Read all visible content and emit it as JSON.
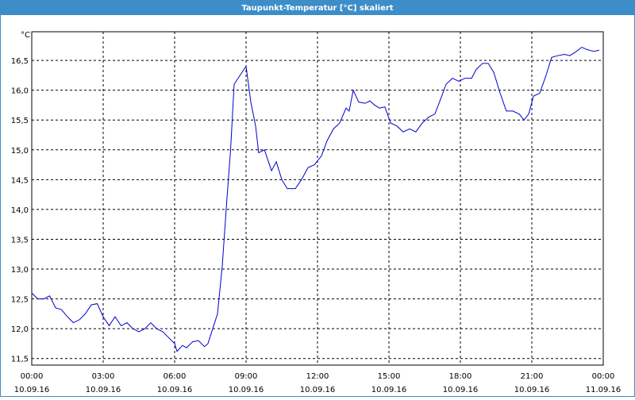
{
  "chart_data": {
    "type": "line",
    "title": "Taupunkt-Temperatur [°C] skaliert",
    "y_unit": "°C",
    "x": [
      0,
      0.25,
      0.5,
      0.75,
      1.0,
      1.25,
      1.5,
      1.75,
      2.0,
      2.25,
      2.5,
      2.75,
      3.0,
      3.25,
      3.5,
      3.75,
      4.0,
      4.25,
      4.5,
      4.75,
      5.0,
      5.25,
      5.5,
      5.75,
      6.0,
      6.1,
      6.33,
      6.5,
      6.75,
      7.0,
      7.25,
      7.4,
      7.6,
      7.8,
      8.0,
      8.2,
      8.35,
      8.5,
      8.83,
      9.0,
      9.2,
      9.4,
      9.53,
      9.77,
      10.07,
      10.27,
      10.5,
      10.73,
      11.07,
      11.33,
      11.6,
      11.87,
      12.17,
      12.4,
      12.67,
      12.93,
      13.2,
      13.33,
      13.5,
      13.73,
      14.0,
      14.2,
      14.4,
      14.6,
      14.83,
      15.07,
      15.33,
      15.6,
      15.87,
      16.13,
      16.4,
      16.67,
      16.93,
      17.17,
      17.4,
      17.67,
      17.93,
      18.2,
      18.47,
      18.67,
      18.93,
      19.17,
      19.4,
      19.67,
      19.93,
      20.2,
      20.47,
      20.67,
      20.87,
      21.07,
      21.33,
      21.6,
      21.83,
      22.1,
      22.37,
      22.6,
      22.87,
      23.1,
      23.33,
      23.6,
      23.83
    ],
    "series": [
      {
        "name": "Taupunkt",
        "color": "#0000cc",
        "values": [
          12.6,
          12.5,
          12.5,
          12.55,
          12.35,
          12.32,
          12.2,
          12.1,
          12.15,
          12.25,
          12.4,
          12.42,
          12.2,
          12.05,
          12.2,
          12.05,
          12.1,
          12.0,
          11.95,
          12.0,
          12.1,
          12.0,
          11.95,
          11.85,
          11.75,
          11.62,
          11.72,
          11.68,
          11.78,
          11.8,
          11.7,
          11.75,
          12.0,
          12.25,
          13.05,
          14.2,
          15.0,
          16.1,
          16.3,
          16.4,
          15.8,
          15.4,
          14.95,
          15.0,
          14.65,
          14.8,
          14.5,
          14.35,
          14.35,
          14.5,
          14.7,
          14.75,
          14.9,
          15.15,
          15.35,
          15.45,
          15.7,
          15.65,
          16.0,
          15.8,
          15.78,
          15.82,
          15.75,
          15.7,
          15.72,
          15.45,
          15.4,
          15.3,
          15.35,
          15.3,
          15.45,
          15.55,
          15.6,
          15.85,
          16.1,
          16.2,
          16.15,
          16.2,
          16.2,
          16.35,
          16.45,
          16.45,
          16.3,
          15.95,
          15.65,
          15.65,
          15.6,
          15.5,
          15.6,
          15.9,
          15.95,
          16.25,
          16.55,
          16.58,
          16.6,
          16.58,
          16.65,
          16.72,
          16.68,
          16.65,
          16.67
        ]
      }
    ],
    "xlim": [
      0,
      24
    ],
    "xticks": [
      {
        "value": 0,
        "label": "00:00",
        "date": "10.09.16"
      },
      {
        "value": 3,
        "label": "03:00",
        "date": "10.09.16"
      },
      {
        "value": 6,
        "label": "06:00",
        "date": "10.09.16"
      },
      {
        "value": 9,
        "label": "09:00",
        "date": "10.09.16"
      },
      {
        "value": 12,
        "label": "12:00",
        "date": "10.09.16"
      },
      {
        "value": 15,
        "label": "15:00",
        "date": "10.09.16"
      },
      {
        "value": 18,
        "label": "18:00",
        "date": "10.09.16"
      },
      {
        "value": 21,
        "label": "21:00",
        "date": "10.09.16"
      },
      {
        "value": 24,
        "label": "00:00",
        "date": "11.09.16"
      }
    ],
    "ylim": [
      11.39,
      16.98
    ],
    "yticks": [
      {
        "value": 11.5,
        "label": "11,5"
      },
      {
        "value": 12,
        "label": "12,0"
      },
      {
        "value": 12.5,
        "label": "12,5"
      },
      {
        "value": 13,
        "label": "13,0"
      },
      {
        "value": 13.5,
        "label": "13,5"
      },
      {
        "value": 14,
        "label": "14,0"
      },
      {
        "value": 14.5,
        "label": "14,5"
      },
      {
        "value": 15,
        "label": "15,0"
      },
      {
        "value": 15.5,
        "label": "15,5"
      },
      {
        "value": 16,
        "label": "16,0"
      },
      {
        "value": 16.5,
        "label": "16,5"
      }
    ],
    "grid": true
  }
}
